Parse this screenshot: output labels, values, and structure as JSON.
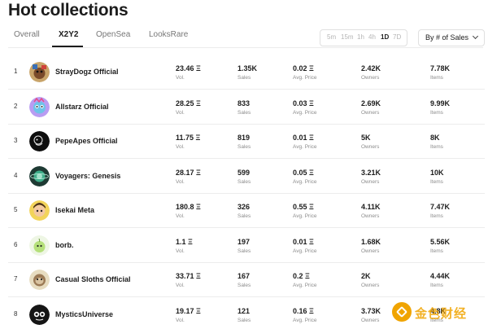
{
  "page_title": "Hot collections",
  "tabs": [
    "Overall",
    "X2Y2",
    "OpenSea",
    "LooksRare"
  ],
  "active_tab": "X2Y2",
  "time_filters": [
    "5m",
    "15m",
    "1h",
    "4h",
    "1D",
    "7D"
  ],
  "active_time_filter": "1D",
  "sort": {
    "label": "By # of Sales"
  },
  "stat_labels": {
    "vol": "Vol.",
    "sales": "Sales",
    "avg": "Avg. Price",
    "owners": "Owners",
    "items": "Items"
  },
  "rows": [
    {
      "rank": "1",
      "name": "StrayDogz Official",
      "vol": "23.46 Ξ",
      "sales": "1.35K",
      "avg": "0.02 Ξ",
      "owners": "2.42K",
      "items": "7.78K",
      "avatar_icon": "dog-avatar-icon"
    },
    {
      "rank": "2",
      "name": "Allstarz Official",
      "vol": "28.25 Ξ",
      "sales": "833",
      "avg": "0.03 Ξ",
      "owners": "2.69K",
      "items": "9.99K",
      "avatar_icon": "star-avatar-icon"
    },
    {
      "rank": "3",
      "name": "PepeApes Official",
      "vol": "11.75 Ξ",
      "sales": "819",
      "avg": "0.01 Ξ",
      "owners": "5K",
      "items": "8K",
      "avatar_icon": "ape-avatar-icon"
    },
    {
      "rank": "4",
      "name": "Voyagers: Genesis",
      "vol": "28.17 Ξ",
      "sales": "599",
      "avg": "0.05 Ξ",
      "owners": "3.21K",
      "items": "10K",
      "avatar_icon": "planet-avatar-icon"
    },
    {
      "rank": "5",
      "name": "Isekai Meta",
      "vol": "180.8 Ξ",
      "sales": "326",
      "avg": "0.55 Ξ",
      "owners": "4.11K",
      "items": "7.47K",
      "avatar_icon": "anime-avatar-icon"
    },
    {
      "rank": "6",
      "name": "borb.",
      "vol": "1.1 Ξ",
      "sales": "197",
      "avg": "0.01 Ξ",
      "owners": "1.68K",
      "items": "5.56K",
      "avatar_icon": "bird-avatar-icon"
    },
    {
      "rank": "7",
      "name": "Casual Sloths Official",
      "vol": "33.71 Ξ",
      "sales": "167",
      "avg": "0.2 Ξ",
      "owners": "2K",
      "items": "4.44K",
      "avatar_icon": "sloth-avatar-icon"
    },
    {
      "rank": "8",
      "name": "MysticsUniverse",
      "vol": "19.17 Ξ",
      "sales": "121",
      "avg": "0.16 Ξ",
      "owners": "3.73K",
      "items": "4.8K",
      "avatar_icon": "mystic-avatar-icon"
    }
  ],
  "watermark": {
    "text": "金色财经",
    "icon": "gold-finance-logo-icon"
  },
  "colors": {
    "text": "#1c1c1c",
    "muted": "#8c8c8c",
    "border": "#ececec",
    "watermark": "#f0a400"
  }
}
